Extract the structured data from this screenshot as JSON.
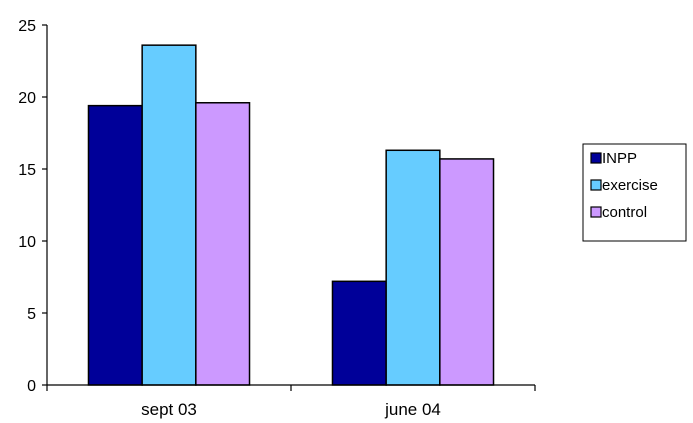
{
  "chart_data": {
    "type": "bar",
    "title": "",
    "xlabel": "",
    "ylabel": "",
    "categories": [
      "sept 03",
      "june 04"
    ],
    "series": [
      {
        "name": "INPP",
        "values": [
          19.4,
          7.2
        ],
        "color": "#000099"
      },
      {
        "name": "exercise",
        "values": [
          23.6,
          16.3
        ],
        "color": "#66ccff"
      },
      {
        "name": "control",
        "values": [
          19.6,
          15.7
        ],
        "color": "#cc99ff"
      }
    ],
    "ylim": [
      0,
      25
    ],
    "yticks": [
      "0",
      "5",
      "10",
      "15",
      "20",
      "25"
    ],
    "grid": false,
    "legend_position": "right"
  }
}
